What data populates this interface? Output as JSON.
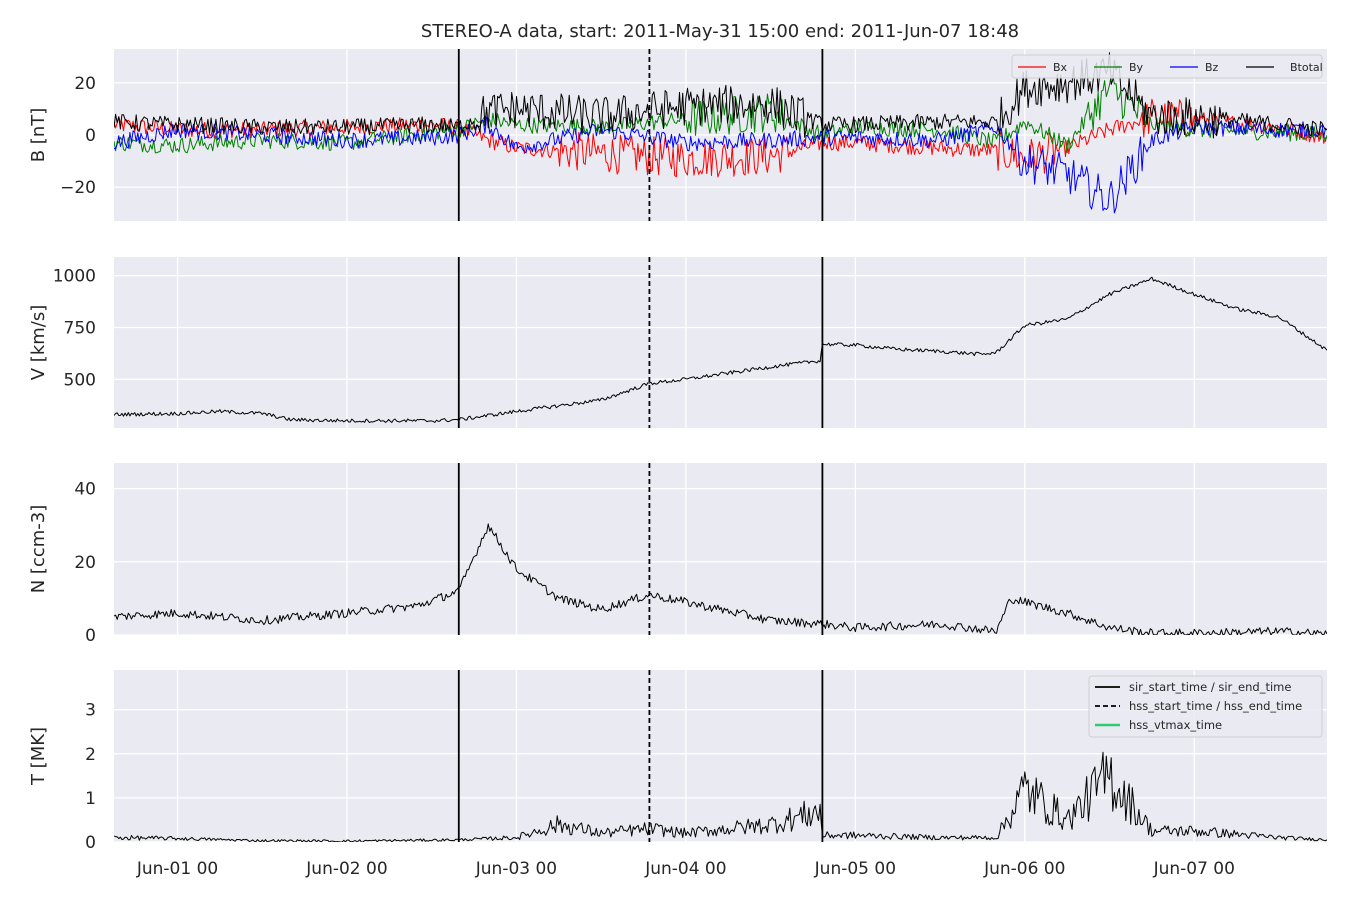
{
  "title": "STEREO-A data, start: 2011-May-31 15:00  end: 2011-Jun-07 18:48",
  "colors": {
    "background": "#eaeaf2",
    "grid": "#ffffff",
    "bx": "#ff0000",
    "by": "#008000",
    "bz": "#0000ff",
    "btotal": "#000000",
    "vtmax": "#2ecc71"
  },
  "x_axis": {
    "start": "2011-05-31 15:00",
    "end": "2011-06-07 18:48",
    "tick_times": [
      "2011-06-01 00:00",
      "2011-06-02 00:00",
      "2011-06-03 00:00",
      "2011-06-04 00:00",
      "2011-06-05 00:00",
      "2011-06-06 00:00",
      "2011-06-07 00:00"
    ],
    "tick_labels": [
      "Jun-01 00",
      "Jun-02 00",
      "Jun-03 00",
      "Jun-04 00",
      "Jun-05 00",
      "Jun-06 00",
      "Jun-07 00"
    ]
  },
  "event_lines": [
    {
      "time": "2011-06-02 15:50",
      "style": "solid"
    },
    {
      "time": "2011-06-03 18:50",
      "style": "dashed"
    },
    {
      "time": "2011-06-04 19:20",
      "style": "solid"
    }
  ],
  "legend_events": [
    {
      "label": "sir_start_time / sir_end_time",
      "style": "solid",
      "color": "#000000"
    },
    {
      "label": "hss_start_time / hss_end_time",
      "style": "dashed",
      "color": "#000000"
    },
    {
      "label": "hss_vtmax_time",
      "style": "solid",
      "color": "#2ecc71"
    }
  ],
  "chart_data": [
    {
      "type": "line",
      "ylabel": "B [nT]",
      "ylim": [
        -33,
        33
      ],
      "yticks": [
        -20,
        0,
        20
      ],
      "ytick_labels": [
        "−20",
        "0",
        "20"
      ],
      "grid": true,
      "legend_position": "top-right",
      "series": [
        {
          "name": "Bx",
          "color": "#ff0000",
          "x": [
            "2011-05-31 15:00",
            "2011-06-01 00:00",
            "2011-06-01 12:00",
            "2011-06-02 00:00",
            "2011-06-02 12:00",
            "2011-06-02 15:50",
            "2011-06-02 20:00",
            "2011-06-03 00:00",
            "2011-06-03 12:00",
            "2011-06-04 00:00",
            "2011-06-04 12:00",
            "2011-06-04 19:20",
            "2011-06-05 00:00",
            "2011-06-05 12:00",
            "2011-06-05 20:00",
            "2011-06-06 00:00",
            "2011-06-06 06:00",
            "2011-06-06 12:00",
            "2011-06-06 18:00",
            "2011-06-07 00:00",
            "2011-06-07 12:00",
            "2011-06-07 18:48"
          ],
          "y": [
            4,
            2,
            2,
            3,
            4,
            3,
            -2,
            -5,
            -7,
            -9,
            -8,
            -3,
            -3,
            -5,
            -6,
            -9,
            -5,
            2,
            7,
            6,
            3,
            -1
          ]
        },
        {
          "name": "By",
          "color": "#008000",
          "x": [
            "2011-05-31 15:00",
            "2011-06-01 00:00",
            "2011-06-01 12:00",
            "2011-06-02 00:00",
            "2011-06-02 12:00",
            "2011-06-02 15:50",
            "2011-06-02 20:00",
            "2011-06-03 00:00",
            "2011-06-03 12:00",
            "2011-06-04 00:00",
            "2011-06-04 12:00",
            "2011-06-04 19:20",
            "2011-06-05 00:00",
            "2011-06-05 12:00",
            "2011-06-05 20:00",
            "2011-06-06 00:00",
            "2011-06-06 06:00",
            "2011-06-06 12:00",
            "2011-06-06 18:00",
            "2011-06-07 00:00",
            "2011-06-07 12:00",
            "2011-06-07 18:48"
          ],
          "y": [
            -3,
            -4,
            -2,
            -3,
            1,
            2,
            6,
            4,
            3,
            6,
            9,
            0,
            3,
            2,
            -3,
            5,
            -4,
            18,
            4,
            2,
            1,
            0
          ]
        },
        {
          "name": "Bz",
          "color": "#0000ff",
          "x": [
            "2011-05-31 15:00",
            "2011-06-01 00:00",
            "2011-06-01 12:00",
            "2011-06-02 00:00",
            "2011-06-02 12:00",
            "2011-06-02 15:50",
            "2011-06-02 20:00",
            "2011-06-03 00:00",
            "2011-06-03 12:00",
            "2011-06-04 00:00",
            "2011-06-04 12:00",
            "2011-06-04 19:20",
            "2011-06-05 00:00",
            "2011-06-05 12:00",
            "2011-06-05 20:00",
            "2011-06-06 00:00",
            "2011-06-06 06:00",
            "2011-06-06 12:00",
            "2011-06-06 18:00",
            "2011-06-07 00:00",
            "2011-06-07 12:00",
            "2011-06-07 18:48"
          ],
          "y": [
            -3,
            2,
            0,
            -2,
            -1,
            0,
            4,
            -5,
            2,
            -3,
            -2,
            -1,
            -1,
            -2,
            3,
            -10,
            -15,
            -25,
            -2,
            3,
            2,
            2
          ]
        },
        {
          "name": "Btotal",
          "color": "#000000",
          "x": [
            "2011-05-31 15:00",
            "2011-06-01 00:00",
            "2011-06-01 12:00",
            "2011-06-02 00:00",
            "2011-06-02 12:00",
            "2011-06-02 15:50",
            "2011-06-02 20:00",
            "2011-06-03 00:00",
            "2011-06-03 12:00",
            "2011-06-04 00:00",
            "2011-06-04 12:00",
            "2011-06-04 19:20",
            "2011-06-05 00:00",
            "2011-06-05 12:00",
            "2011-06-05 20:00",
            "2011-06-06 00:00",
            "2011-06-06 06:00",
            "2011-06-06 12:00",
            "2011-06-06 18:00",
            "2011-06-07 00:00",
            "2011-06-07 12:00",
            "2011-06-07 18:48"
          ],
          "y": [
            5,
            4,
            3,
            3,
            4,
            3,
            9,
            10,
            7,
            11,
            12,
            4,
            4,
            5,
            5,
            18,
            20,
            24,
            7,
            7,
            4,
            2
          ]
        }
      ]
    },
    {
      "type": "line",
      "ylabel": "V [km/s]",
      "ylim": [
        265,
        1090
      ],
      "yticks": [
        500,
        750,
        1000
      ],
      "ytick_labels": [
        "500",
        "750",
        "1000"
      ],
      "grid": true,
      "series": [
        {
          "name": "V",
          "color": "#000000",
          "x": [
            "2011-05-31 15:00",
            "2011-06-01 00:00",
            "2011-06-01 06:00",
            "2011-06-01 12:00",
            "2011-06-01 16:00",
            "2011-06-02 00:00",
            "2011-06-02 12:00",
            "2011-06-02 15:50",
            "2011-06-03 00:00",
            "2011-06-03 12:00",
            "2011-06-03 18:50",
            "2011-06-04 00:00",
            "2011-06-04 12:00",
            "2011-06-04 19:00",
            "2011-06-04 19:20",
            "2011-06-05 00:00",
            "2011-06-05 06:00",
            "2011-06-05 12:00",
            "2011-06-05 18:00",
            "2011-06-05 20:00",
            "2011-06-06 00:00",
            "2011-06-06 06:00",
            "2011-06-06 12:00",
            "2011-06-06 18:00",
            "2011-06-07 00:00",
            "2011-06-07 06:00",
            "2011-06-07 12:00",
            "2011-06-07 18:48"
          ],
          "y": [
            330,
            335,
            345,
            335,
            305,
            300,
            300,
            305,
            345,
            400,
            480,
            500,
            560,
            590,
            670,
            665,
            645,
            635,
            620,
            630,
            760,
            790,
            910,
            985,
            910,
            840,
            800,
            640
          ]
        }
      ]
    },
    {
      "type": "line",
      "ylabel": "N [ccm-3]",
      "ylim": [
        0,
        47
      ],
      "yticks": [
        0,
        20,
        40
      ],
      "ytick_labels": [
        "0",
        "20",
        "40"
      ],
      "grid": true,
      "series": [
        {
          "name": "N",
          "color": "#000000",
          "x": [
            "2011-05-31 15:00",
            "2011-06-01 00:00",
            "2011-06-01 12:00",
            "2011-06-02 00:00",
            "2011-06-02 10:00",
            "2011-06-02 15:50",
            "2011-06-02 20:00",
            "2011-06-03 00:00",
            "2011-06-03 06:00",
            "2011-06-03 12:00",
            "2011-06-03 18:50",
            "2011-06-04 00:00",
            "2011-06-04 12:00",
            "2011-06-04 19:20",
            "2011-06-05 00:00",
            "2011-06-05 12:00",
            "2011-06-05 20:00",
            "2011-06-05 22:00",
            "2011-06-06 06:00",
            "2011-06-06 12:00",
            "2011-06-06 18:00",
            "2011-06-07 00:00",
            "2011-06-07 12:00",
            "2011-06-07 18:48"
          ],
          "y": [
            5,
            6,
            4,
            6,
            8,
            12,
            30,
            18,
            10,
            7,
            11,
            9,
            4,
            3,
            2,
            3,
            1,
            10,
            6,
            2,
            0.5,
            0.5,
            1,
            0.3
          ]
        }
      ]
    },
    {
      "type": "line",
      "ylabel": "T [MK]",
      "ylim": [
        0,
        3.9
      ],
      "yticks": [
        0,
        1,
        2,
        3
      ],
      "ytick_labels": [
        "0",
        "1",
        "2",
        "3"
      ],
      "grid": true,
      "legend_position": "top-right",
      "series": [
        {
          "name": "T",
          "color": "#000000",
          "x": [
            "2011-05-31 15:00",
            "2011-06-01 00:00",
            "2011-06-01 12:00",
            "2011-06-02 00:00",
            "2011-06-02 15:50",
            "2011-06-03 00:00",
            "2011-06-03 06:00",
            "2011-06-03 12:00",
            "2011-06-03 18:50",
            "2011-06-04 00:00",
            "2011-06-04 12:00",
            "2011-06-04 19:00",
            "2011-06-04 19:20",
            "2011-06-05 00:00",
            "2011-06-05 12:00",
            "2011-06-05 20:00",
            "2011-06-06 00:00",
            "2011-06-06 06:00",
            "2011-06-06 12:00",
            "2011-06-06 18:00",
            "2011-06-07 00:00",
            "2011-06-07 12:00",
            "2011-06-07 18:48"
          ],
          "y": [
            0.1,
            0.08,
            0.03,
            0.02,
            0.05,
            0.1,
            0.4,
            0.2,
            0.3,
            0.2,
            0.4,
            0.7,
            0.15,
            0.15,
            0.1,
            0.1,
            1.2,
            0.5,
            1.5,
            0.25,
            0.25,
            0.1,
            0.05
          ]
        }
      ]
    }
  ],
  "legend_b": [
    {
      "label": "Bx",
      "color": "#ff0000"
    },
    {
      "label": "By",
      "color": "#008000"
    },
    {
      "label": "Bz",
      "color": "#0000ff"
    },
    {
      "label": "Btotal",
      "color": "#000000"
    }
  ]
}
